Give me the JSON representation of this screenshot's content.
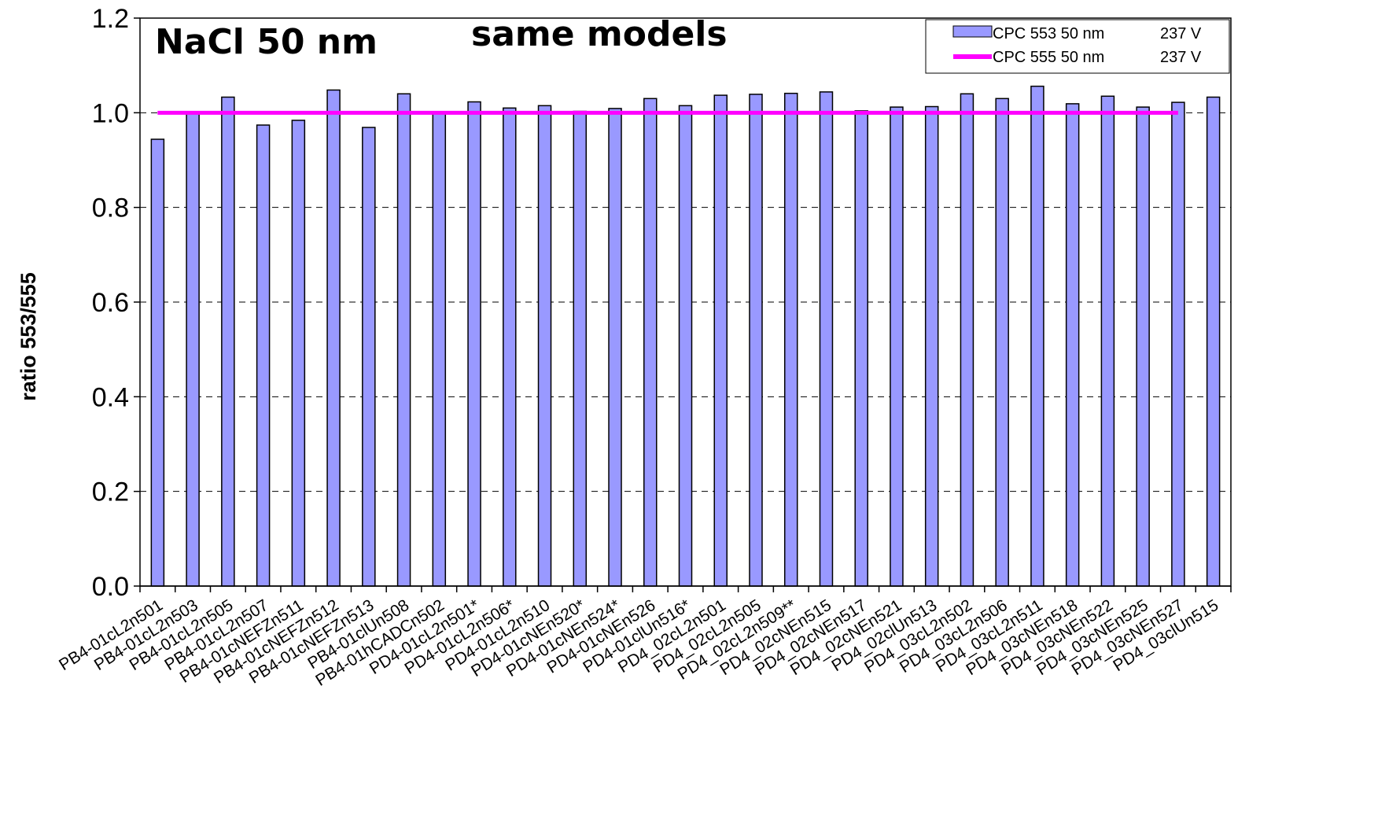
{
  "chart_data": {
    "type": "bar",
    "title": "",
    "xlabel": "",
    "ylabel": "ratio 553/555",
    "ylim": [
      0,
      1.2
    ],
    "yticks": [
      "0.0",
      "0.2",
      "0.4",
      "0.6",
      "0.8",
      "1.0",
      "1.2"
    ],
    "grid": "horizontal dashed",
    "legend_position": "top-right",
    "annotations": [
      "NaCl 50 nm",
      "same models"
    ],
    "categories": [
      "PB4-01cL2n501",
      "PB4-01cL2n503",
      "PB4-01cL2n505",
      "PB4-01cL2n507",
      "PB4-01cNEFZn511",
      "PB4-01cNEFZn512",
      "PB4-01cNEFZn513",
      "PB4-01clUn508",
      "PB4-01hCADCn502",
      "PD4-01cL2n501*",
      "PD4-01cL2n506*",
      "PD4-01cL2n510",
      "PD4-01cNEn520*",
      "PD4-01cNEn524*",
      "PD4-01cNEn526",
      "PD4-01clUn516*",
      "PD4_02cL2n501",
      "PD4_02cL2n505",
      "PD4_02cL2n509**",
      "PD4_02cNEn515",
      "PD4_02cNEn517",
      "PD4_02cNEn521",
      "PD4_02clUn513",
      "PD4_03cL2n502",
      "PD4_03cL2n506",
      "PD4_03cL2n511",
      "PD4_03cNEn518",
      "PD4_03cNEn522",
      "PD4_03cNEn525",
      "PD4_03cNEn527",
      "PD4_03clUn515"
    ],
    "series": [
      {
        "name": "CPC 553 50 nm",
        "voltage": "237 V",
        "kind": "bar",
        "color": "#9999ff",
        "values": [
          0.944,
          1.0,
          1.033,
          0.974,
          0.984,
          1.048,
          0.969,
          1.04,
          1.0,
          1.023,
          1.01,
          1.015,
          1.003,
          1.009,
          1.03,
          1.015,
          1.037,
          1.039,
          1.041,
          1.044,
          1.004,
          1.012,
          1.013,
          1.04,
          1.03,
          1.056,
          1.019,
          1.035,
          1.012,
          1.022,
          1.033
        ]
      },
      {
        "name": "CPC 555 50 nm",
        "voltage": "237 V",
        "kind": "line",
        "color": "#ff00ff",
        "value": 1.0
      }
    ]
  }
}
